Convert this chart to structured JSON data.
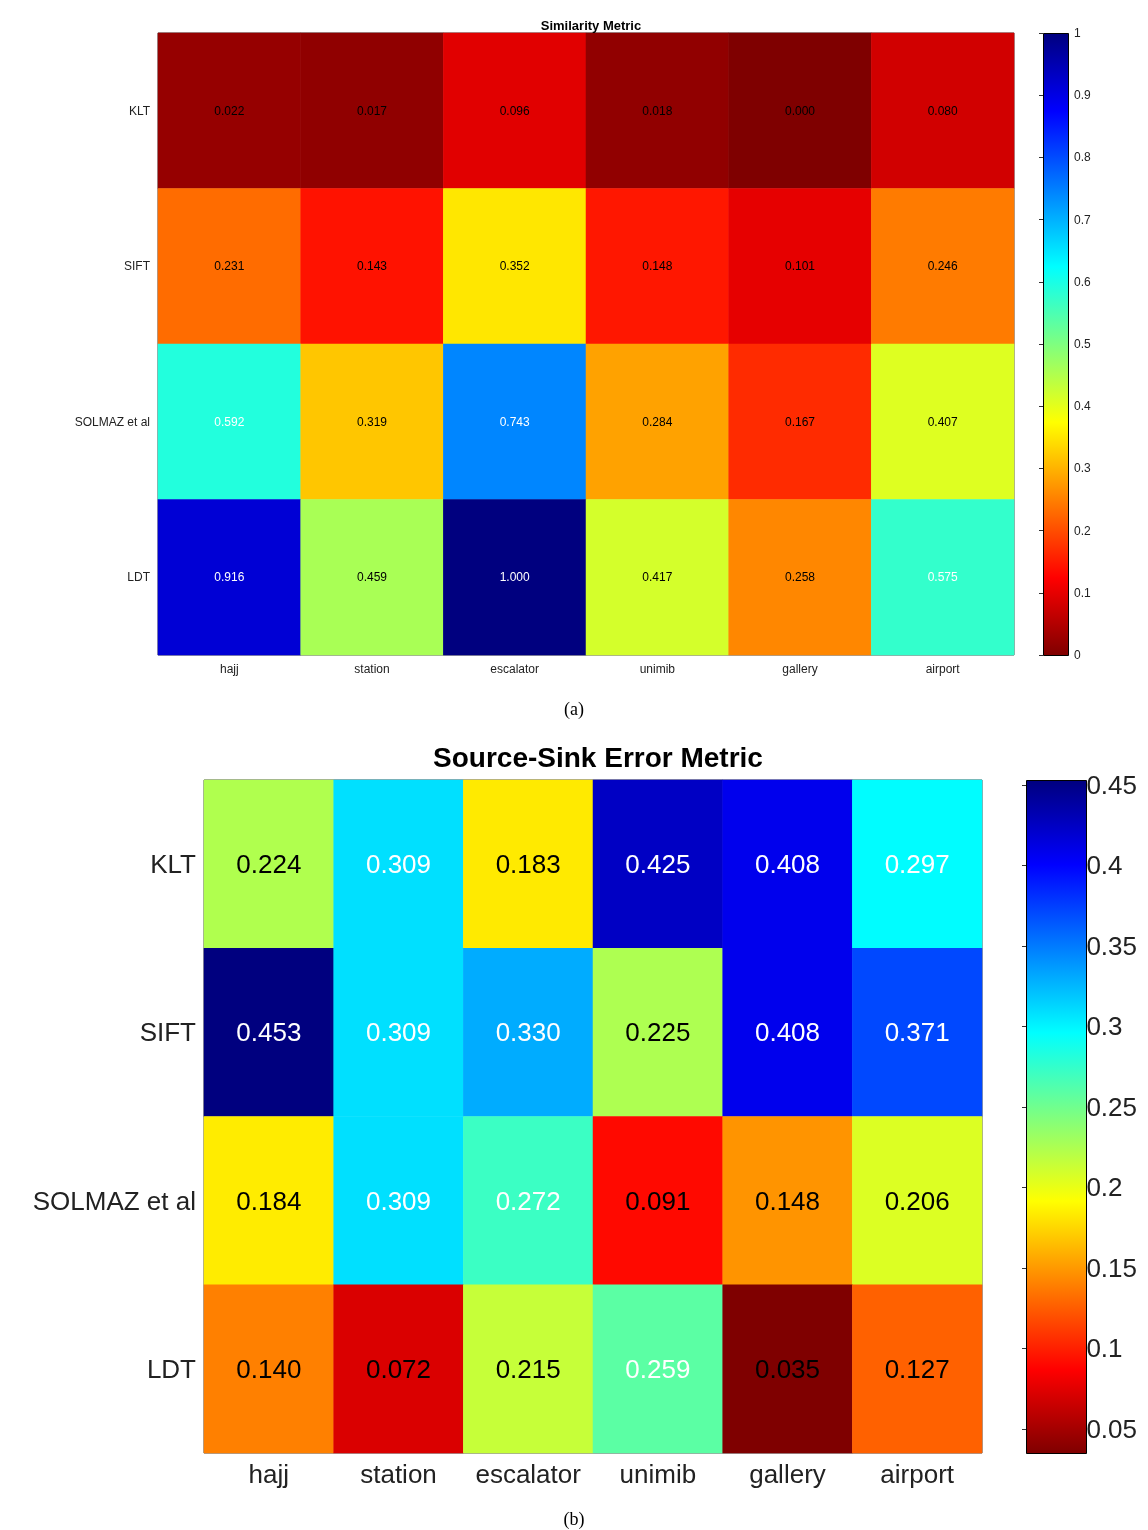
{
  "chart_data": [
    {
      "type": "heatmap",
      "title": "Similarity Metric",
      "categories": [
        "hajj",
        "station",
        "escalator",
        "unimib",
        "gallery",
        "airport"
      ],
      "y_categories": [
        "KLT",
        "SIFT",
        "SOLMAZ et al",
        "LDT"
      ],
      "cells": [
        [
          0.022,
          0.017,
          0.096,
          0.018,
          0.0,
          0.08
        ],
        [
          0.231,
          0.143,
          0.352,
          0.148,
          0.101,
          0.246
        ],
        [
          0.592,
          0.319,
          0.743,
          0.284,
          0.167,
          0.407
        ],
        [
          0.916,
          0.459,
          1.0,
          0.417,
          0.258,
          0.575
        ]
      ],
      "cell_labels": [
        [
          "0.022",
          "0.017",
          "0.096",
          "0.018",
          "0.000",
          "0.080"
        ],
        [
          "0.231",
          "0.143",
          "0.352",
          "0.148",
          "0.101",
          "0.246"
        ],
        [
          "0.592",
          "0.319",
          "0.743",
          "0.284",
          "0.167",
          "0.407"
        ],
        [
          "0.916",
          "0.459",
          "1.000",
          "0.417",
          "0.258",
          "0.575"
        ]
      ],
      "clim": [
        0,
        1
      ],
      "cticks": [
        0,
        0.1,
        0.2,
        0.3,
        0.4,
        0.5,
        0.6,
        0.7,
        0.8,
        0.9,
        1
      ],
      "annotations": [
        "(a)"
      ]
    },
    {
      "type": "heatmap",
      "title": "Source-Sink Error Metric",
      "categories": [
        "hajj",
        "station",
        "escalator",
        "unimib",
        "gallery",
        "airport"
      ],
      "y_categories": [
        "KLT",
        "SIFT",
        "SOLMAZ et al",
        "LDT"
      ],
      "cells": [
        [
          0.224,
          0.309,
          0.183,
          0.425,
          0.408,
          0.297
        ],
        [
          0.453,
          0.309,
          0.33,
          0.225,
          0.408,
          0.371
        ],
        [
          0.184,
          0.309,
          0.272,
          0.091,
          0.148,
          0.206
        ],
        [
          0.14,
          0.072,
          0.215,
          0.259,
          0.035,
          0.127
        ]
      ],
      "cell_labels": [
        [
          "0.224",
          "0.309",
          "0.183",
          "0.425",
          "0.408",
          "0.297"
        ],
        [
          "0.453",
          "0.309",
          "0.330",
          "0.225",
          "0.408",
          "0.371"
        ],
        [
          "0.184",
          "0.309",
          "0.272",
          "0.091",
          "0.148",
          "0.206"
        ],
        [
          "0.140",
          "0.072",
          "0.215",
          "0.259",
          "0.035",
          "0.127"
        ]
      ],
      "clim": [
        0.035,
        0.453
      ],
      "cticks": [
        0.05,
        0.1,
        0.15,
        0.2,
        0.25,
        0.3,
        0.35,
        0.4,
        0.45
      ],
      "annotations": [
        "(b)"
      ]
    }
  ]
}
